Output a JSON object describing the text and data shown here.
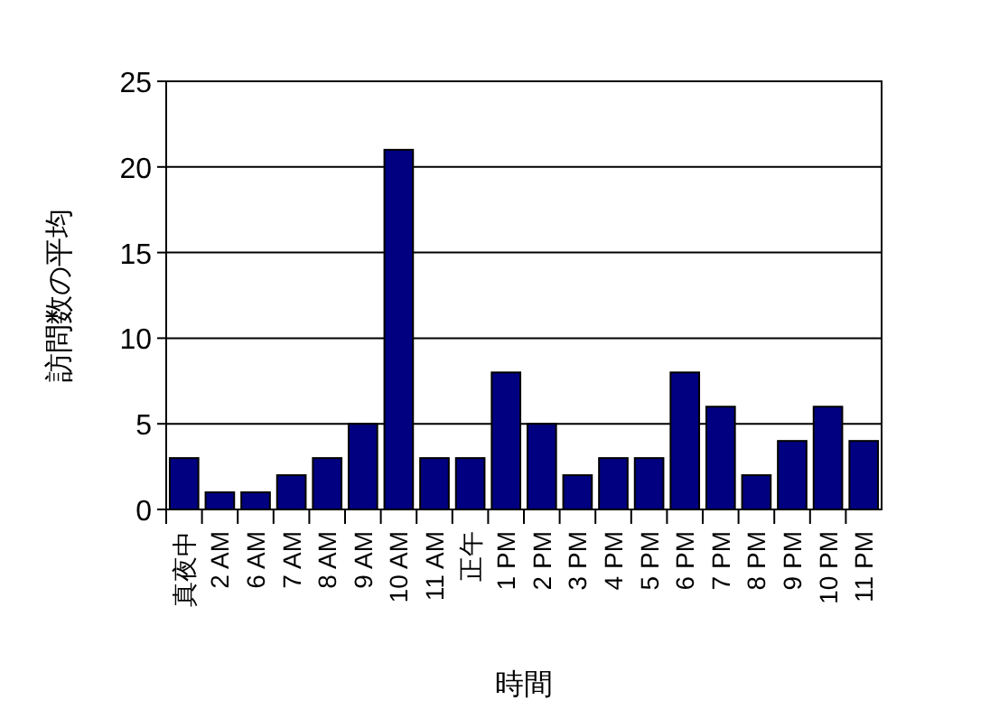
{
  "chart_data": {
    "type": "bar",
    "xlabel": "時間",
    "ylabel": "訪問数の平均",
    "categories": [
      "真夜中",
      "2 AM",
      "6 AM",
      "7 AM",
      "8 AM",
      "9 AM",
      "10 AM",
      "11 AM",
      "正午",
      "1 PM",
      "2 PM",
      "3 PM",
      "4 PM",
      "5 PM",
      "6 PM",
      "7 PM",
      "8 PM",
      "9 PM",
      "10 PM",
      "11 PM"
    ],
    "values": [
      3,
      1,
      1,
      2,
      3,
      5,
      21,
      3,
      3,
      8,
      5,
      2,
      3,
      3,
      8,
      6,
      2,
      4,
      6,
      4
    ],
    "color": "#000080",
    "ylim": [
      0,
      25
    ],
    "yticks": [
      0,
      5,
      10,
      15,
      20,
      25
    ],
    "grid": "y"
  }
}
